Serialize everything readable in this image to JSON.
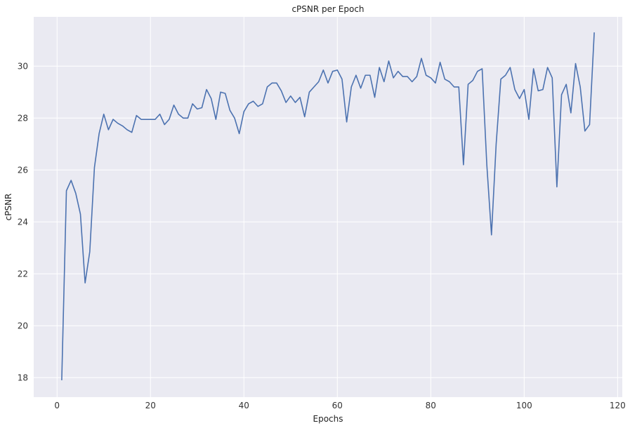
{
  "chart_data": {
    "type": "line",
    "title": "cPSNR per Epoch",
    "xlabel": "Epochs",
    "ylabel": "cPSNR",
    "xlim": [
      -5,
      121
    ],
    "ylim": [
      17.25,
      31.9
    ],
    "xticks": [
      0,
      20,
      40,
      60,
      80,
      100,
      120
    ],
    "yticks": [
      18,
      20,
      22,
      24,
      26,
      28,
      30
    ],
    "grid": true,
    "legend": "none",
    "colors": {
      "background": "#eaeaf2",
      "grid": "#ffffff",
      "line": "#4c72b0"
    },
    "series": [
      {
        "x": [
          1,
          2,
          3,
          4,
          5,
          6,
          7,
          8,
          9,
          10,
          11,
          12,
          13,
          14,
          15,
          16,
          17,
          18,
          19,
          20,
          21,
          22,
          23,
          24,
          25,
          26,
          27,
          28,
          29,
          30,
          31,
          32,
          33,
          34,
          35,
          36,
          37,
          38,
          39,
          40,
          41,
          42,
          43,
          44,
          45,
          46,
          47,
          48,
          49,
          50,
          51,
          52,
          53,
          54,
          55,
          56,
          57,
          58,
          59,
          60,
          61,
          62,
          63,
          64,
          65,
          66,
          67,
          68,
          69,
          70,
          71,
          72,
          73,
          74,
          75,
          76,
          77,
          78,
          79,
          80,
          81,
          82,
          83,
          84,
          85,
          86,
          87,
          88,
          89,
          90,
          91,
          92,
          93,
          94,
          95,
          96,
          97,
          98,
          99,
          100,
          101,
          102,
          103,
          104,
          105,
          106,
          107,
          108,
          109,
          110,
          111,
          112,
          113,
          114,
          115
        ],
        "values": [
          17.9,
          25.2,
          25.6,
          25.1,
          24.3,
          21.65,
          22.85,
          26.1,
          27.4,
          28.15,
          27.55,
          27.95,
          27.8,
          27.7,
          27.55,
          27.45,
          28.1,
          27.95,
          27.95,
          27.95,
          27.95,
          28.15,
          27.75,
          27.95,
          28.5,
          28.15,
          28.0,
          28.0,
          28.55,
          28.35,
          28.4,
          29.1,
          28.75,
          27.95,
          29.0,
          28.95,
          28.3,
          28.0,
          27.4,
          28.25,
          28.55,
          28.65,
          28.45,
          28.55,
          29.2,
          29.35,
          29.35,
          29.05,
          28.6,
          28.85,
          28.6,
          28.8,
          28.05,
          29.0,
          29.2,
          29.4,
          29.85,
          29.35,
          29.8,
          29.85,
          29.5,
          27.85,
          29.2,
          29.65,
          29.15,
          29.65,
          29.65,
          28.8,
          29.95,
          29.4,
          30.2,
          29.55,
          29.8,
          29.6,
          29.6,
          29.4,
          29.6,
          30.3,
          29.65,
          29.55,
          29.35,
          30.15,
          29.5,
          29.4,
          29.2,
          29.2,
          26.2,
          29.3,
          29.45,
          29.8,
          29.9,
          26.2,
          23.5,
          27.0,
          29.5,
          29.65,
          29.95,
          29.1,
          28.75,
          29.1,
          27.95,
          29.9,
          29.05,
          29.1,
          29.95,
          29.55,
          25.35,
          28.9,
          29.3,
          28.2,
          30.1,
          29.2,
          27.5,
          27.75,
          31.3
        ]
      }
    ]
  }
}
